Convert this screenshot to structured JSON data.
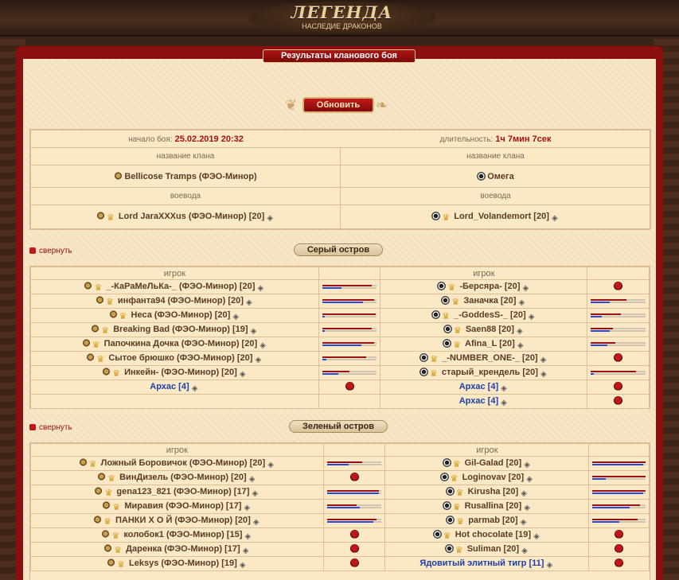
{
  "header": {
    "logo_title": "ЛЕГЕНДА",
    "logo_subtitle": "НАСЛЕДИЕ ДРАКОНОВ",
    "page_title": "Результаты кланового боя",
    "refresh_label": "Обновить"
  },
  "battle": {
    "start_label": "начало боя:",
    "start_value": "25.02.2019 20:32",
    "duration_label": "длительность:",
    "duration_value": "1ч 7мин 7сек",
    "clan_header": "название клана",
    "voevoda_header": "воевода",
    "clan_left": "Bellicose Tramps (ФЭО-Минор)",
    "clan_right": "Омега",
    "voevoda_left": "Lord JaraXXXus (ФЭО-Минор) [20]",
    "voevoda_right": "Lord_Volandemort [20]"
  },
  "labels": {
    "collapse": "свернуть",
    "player_header": "игрок"
  },
  "islands": [
    {
      "name": "Серый остров",
      "left": [
        {
          "name": "_-КаРаМеЛьКа-_ (ФЭО-Минор) [20]",
          "type": "player",
          "hp": 0.9,
          "mp": 0.35
        },
        {
          "name": "инфанта94 (ФЭО-Минор) [20]",
          "type": "player",
          "hp": 0.95,
          "mp": 0.75
        },
        {
          "name": "Неса (ФЭО-Минор) [20]",
          "type": "player",
          "hp": 0.98,
          "mp": 0.05
        },
        {
          "name": "Breaking Bad (ФЭО-Минор) [19]",
          "type": "player",
          "hp": 0.9,
          "mp": 0.05
        },
        {
          "name": "Папочкина Дочка (ФЭО-Минор) [20]",
          "type": "player",
          "hp": 0.95,
          "mp": 0.72
        },
        {
          "name": "Сытое брюшко (ФЭО-Минор) [20]",
          "type": "player",
          "hp": 0.8,
          "mp": 0.08
        },
        {
          "name": "Инкейн- (ФЭО-Минор) [20]",
          "type": "player",
          "hp": 0.5,
          "mp": 0.3
        },
        {
          "name": "Архас [4]",
          "type": "bot",
          "dead": true
        }
      ],
      "right": [
        {
          "name": "-Берсяра- [20]",
          "type": "player",
          "dead": true
        },
        {
          "name": "Заначка [20]",
          "type": "player",
          "hp": 0.65,
          "mp": 0.35
        },
        {
          "name": "_-GoddesS-_ [20]",
          "type": "player",
          "hp": 0.55,
          "mp": 0.2
        },
        {
          "name": "Saen88 [20]",
          "type": "player",
          "hp": 0.4,
          "mp": 0.35
        },
        {
          "name": "Afina_L [20]",
          "type": "player",
          "hp": 0.45,
          "mp": 0.3
        },
        {
          "name": "_-NUMBER_ONE-_ [20]",
          "type": "player",
          "dead": true
        },
        {
          "name": "старый_крендель [20]",
          "type": "player",
          "hp": 0.82,
          "mp": 0.05
        },
        {
          "name": "Архас [4]",
          "type": "bot",
          "dead": true
        },
        {
          "name": "Архас [4]",
          "type": "bot",
          "dead": true
        }
      ]
    },
    {
      "name": "Зеленый остров",
      "left": [
        {
          "name": "Ложный Боровичок (ФЭО-Минор) [20]",
          "type": "player",
          "hp": 0.65,
          "mp": 0.4
        },
        {
          "name": "ВинДизель (ФЭО-Минор) [20]",
          "type": "player",
          "dead": true
        },
        {
          "name": "gena123_821 (ФЭО-Минор) [17]",
          "type": "player",
          "hp": 0.95,
          "mp": 0.95
        },
        {
          "name": "Миравия (ФЭО-Минор) [17]",
          "type": "player",
          "hp": 0.55,
          "mp": 0.6
        },
        {
          "name": "ПАНКИ Х О Й (ФЭО-Минор) [20]",
          "type": "player",
          "hp": 0.9,
          "mp": 0.85
        },
        {
          "name": "колобок1 (ФЭО-Минор) [15]",
          "type": "player",
          "dead": true
        },
        {
          "name": "Даренка (ФЭО-Минор) [17]",
          "type": "player",
          "dead": true
        },
        {
          "name": "Leksys (ФЭО-Минор) [19]",
          "type": "player",
          "dead": true
        }
      ],
      "right": [
        {
          "name": "Gil-Galad [20]",
          "type": "player",
          "hp": 1.0,
          "mp": 0.95
        },
        {
          "name": "Loginovav [20]",
          "type": "player",
          "hp": 1.0,
          "mp": 0.25
        },
        {
          "name": "Kirusha [20]",
          "type": "player",
          "hp": 1.0,
          "mp": 0.95
        },
        {
          "name": "Rusallina [20]",
          "type": "player",
          "hp": 0.9,
          "mp": 0.7
        },
        {
          "name": "parmab [20]",
          "type": "player",
          "hp": 0.85,
          "mp": 0.5
        },
        {
          "name": "Hot chocolate [19]",
          "type": "player",
          "dead": true
        },
        {
          "name": "Suliman [20]",
          "type": "player",
          "dead": true
        },
        {
          "name": "Ядовитый элитный тигр [11]",
          "type": "bot",
          "dead": true
        }
      ]
    }
  ]
}
